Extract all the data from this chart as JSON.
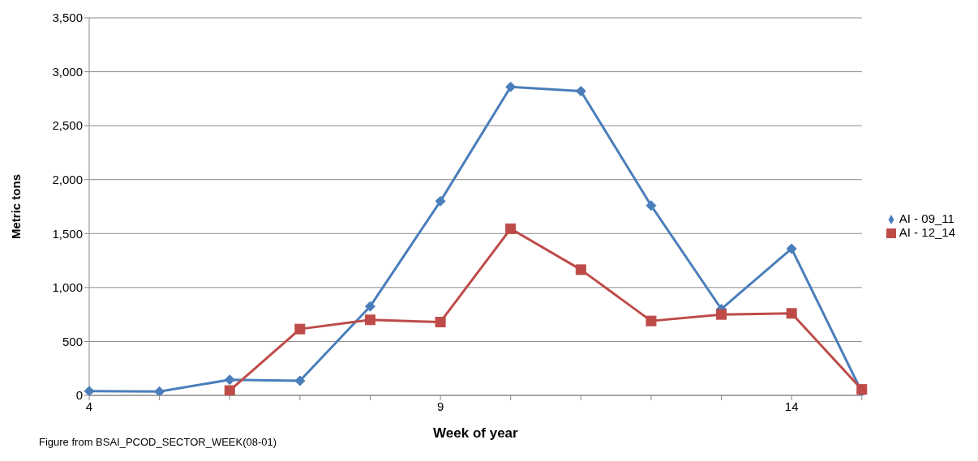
{
  "chart_data": {
    "type": "line",
    "xlabel": "Week of year",
    "ylabel": "Metric tons",
    "categories": [
      "4",
      null,
      null,
      null,
      null,
      "9",
      null,
      null,
      null,
      null,
      "14",
      null
    ],
    "series": [
      {
        "name": "AI - 09_11",
        "color": "#4a7ebb",
        "marker": "diamond",
        "values": [
          40,
          35,
          145,
          135,
          825,
          1800,
          2860,
          2820,
          1760,
          800,
          1360,
          30
        ]
      },
      {
        "name": "AI - 12_14",
        "color": "#be4b48",
        "marker": "square",
        "values": [
          null,
          null,
          45,
          615,
          700,
          680,
          1545,
          1165,
          690,
          750,
          760,
          55
        ]
      }
    ],
    "ylim": [
      0,
      3500
    ],
    "yticks": [
      0,
      500,
      {
        "value": 1000,
        "label": "1,000"
      },
      {
        "value": 1500,
        "label": "1,500"
      },
      {
        "value": 2000,
        "label": "2,000"
      },
      {
        "value": 2500,
        "label": "2,500"
      },
      {
        "value": 3000,
        "label": "3,000"
      },
      {
        "value": 3500,
        "label": "3,500"
      }
    ],
    "grid": "y",
    "legend": "right",
    "annotations": [
      "Figure from  BSAI_PCOD_SECTOR_WEEK(08-01)"
    ]
  }
}
